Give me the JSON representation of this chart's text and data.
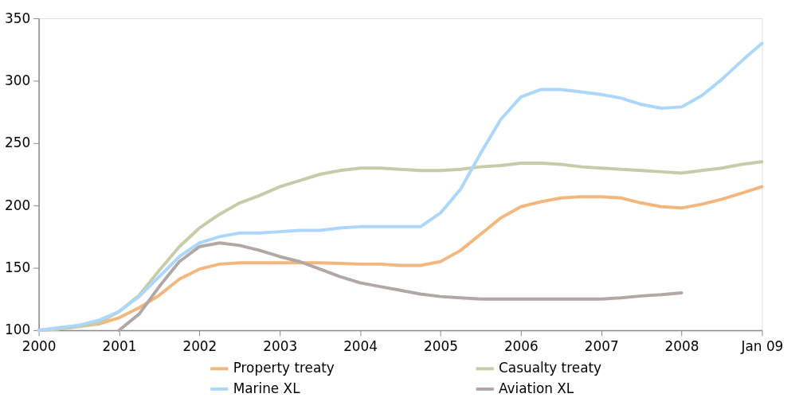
{
  "chart_data": {
    "type": "line",
    "x": [
      2000,
      2000.25,
      2000.5,
      2000.75,
      2001,
      2001.25,
      2001.5,
      2001.75,
      2002,
      2002.25,
      2002.5,
      2002.75,
      2003,
      2003.25,
      2003.5,
      2003.75,
      2004,
      2004.25,
      2004.5,
      2004.75,
      2005,
      2005.25,
      2005.5,
      2005.75,
      2006,
      2006.25,
      2006.5,
      2006.75,
      2007,
      2007.25,
      2007.5,
      2007.75,
      2008,
      2008.25,
      2008.5,
      2008.75,
      2009
    ],
    "series": [
      {
        "name": "Property treaty",
        "color": "#f2b77e",
        "values": [
          100,
          101,
          103,
          105,
          110,
          118,
          128,
          141,
          149,
          153,
          154,
          154,
          154,
          154,
          154,
          153.5,
          153,
          153,
          152,
          152,
          155,
          164,
          177,
          190,
          199,
          203,
          206,
          207,
          207,
          206,
          202,
          199,
          198,
          201,
          205,
          210,
          215
        ]
      },
      {
        "name": "Casualty treaty",
        "color": "#c4cca8",
        "values": [
          100,
          101,
          103,
          106,
          115,
          128,
          148,
          167,
          182,
          193,
          202,
          208,
          215,
          220,
          225,
          228,
          230,
          230,
          229,
          228,
          228,
          229,
          231,
          232,
          234,
          234,
          233,
          231,
          230,
          229,
          228,
          227,
          226,
          228,
          230,
          233,
          235
        ]
      },
      {
        "name": "Marine XL",
        "color": "#acd6fa",
        "values": [
          100,
          102,
          104,
          108,
          115,
          127,
          143,
          159,
          170,
          175,
          178,
          178,
          179,
          180,
          180,
          182,
          183,
          183,
          183,
          183,
          194,
          213,
          242,
          269,
          287,
          293,
          293,
          291,
          289,
          286,
          281,
          278,
          279,
          288,
          301,
          316,
          330
        ]
      },
      {
        "name": "Aviation XL",
        "color": "#b1a7a7",
        "values": [
          null,
          null,
          null,
          null,
          100,
          113,
          135,
          155,
          167,
          170,
          168,
          164,
          159,
          155,
          149,
          143,
          138,
          135,
          132,
          129,
          127,
          126,
          125,
          125,
          125,
          125,
          125,
          125,
          125,
          126,
          127.5,
          128.5,
          130,
          null,
          null,
          null,
          null
        ]
      }
    ],
    "xlim": [
      2000,
      2009
    ],
    "xticks": [
      2000,
      2001,
      2002,
      2003,
      2004,
      2005,
      2006,
      2007,
      2008,
      {
        "value": 2009,
        "label": "Jan 09"
      }
    ],
    "ylim": [
      100,
      350
    ],
    "yticks": [
      100,
      150,
      200,
      250,
      300,
      350
    ],
    "grid": false,
    "legend": "bottom",
    "marker": "none",
    "line_style": "solid"
  }
}
